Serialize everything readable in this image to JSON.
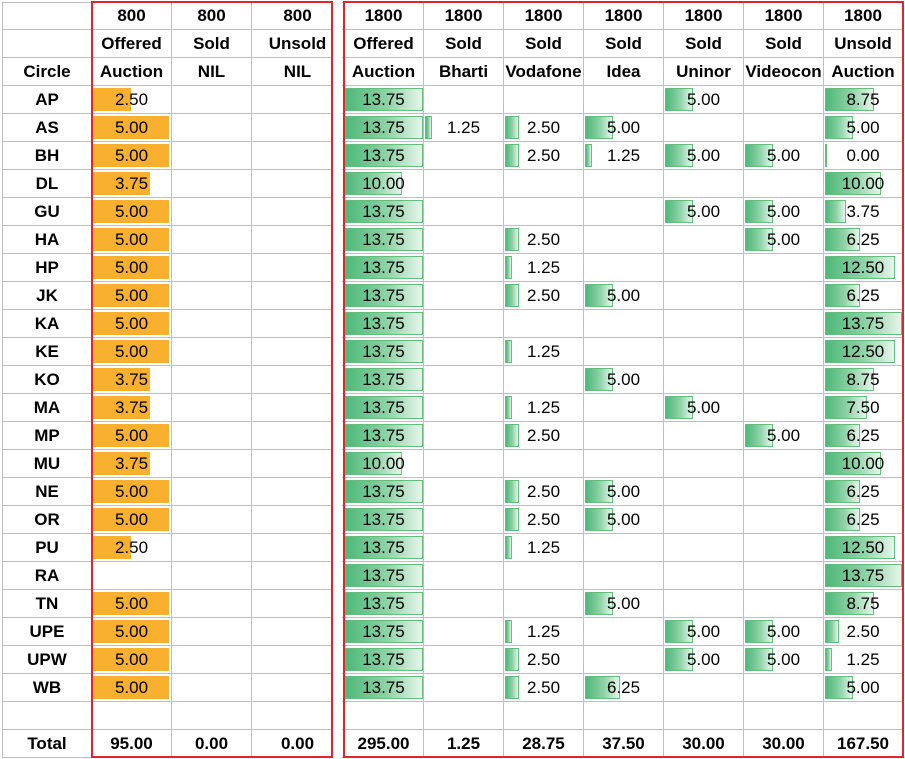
{
  "header": {
    "row1": [
      "",
      "800",
      "800",
      "800",
      "1800",
      "1800",
      "1800",
      "1800",
      "1800",
      "1800",
      "1800"
    ],
    "row2": [
      "",
      "Offered",
      "Sold",
      "Unsold",
      "Offered",
      "Sold",
      "Sold",
      "Sold",
      "Sold",
      "Sold",
      "Unsold"
    ],
    "row3": [
      "Circle",
      "Auction",
      "NIL",
      "NIL",
      "Auction",
      "Bharti",
      "Vodafone",
      "Idea",
      "Uninor",
      "Videocon",
      "Auction"
    ]
  },
  "rows": [
    [
      "AP",
      "2.50",
      "",
      "",
      "13.75",
      "",
      "",
      "",
      "5.00",
      "",
      "8.75"
    ],
    [
      "AS",
      "5.00",
      "",
      "",
      "13.75",
      "1.25",
      "2.50",
      "5.00",
      "",
      "",
      "5.00"
    ],
    [
      "BH",
      "5.00",
      "",
      "",
      "13.75",
      "",
      "2.50",
      "1.25",
      "5.00",
      "5.00",
      "0.00"
    ],
    [
      "DL",
      "3.75",
      "",
      "",
      "10.00",
      "",
      "",
      "",
      "",
      "",
      "10.00"
    ],
    [
      "GU",
      "5.00",
      "",
      "",
      "13.75",
      "",
      "",
      "",
      "5.00",
      "5.00",
      "3.75"
    ],
    [
      "HA",
      "5.00",
      "",
      "",
      "13.75",
      "",
      "2.50",
      "",
      "",
      "5.00",
      "6.25"
    ],
    [
      "HP",
      "5.00",
      "",
      "",
      "13.75",
      "",
      "1.25",
      "",
      "",
      "",
      "12.50"
    ],
    [
      "JK",
      "5.00",
      "",
      "",
      "13.75",
      "",
      "2.50",
      "5.00",
      "",
      "",
      "6.25"
    ],
    [
      "KA",
      "5.00",
      "",
      "",
      "13.75",
      "",
      "",
      "",
      "",
      "",
      "13.75"
    ],
    [
      "KE",
      "5.00",
      "",
      "",
      "13.75",
      "",
      "1.25",
      "",
      "",
      "",
      "12.50"
    ],
    [
      "KO",
      "3.75",
      "",
      "",
      "13.75",
      "",
      "",
      "5.00",
      "",
      "",
      "8.75"
    ],
    [
      "MA",
      "3.75",
      "",
      "",
      "13.75",
      "",
      "1.25",
      "",
      "5.00",
      "",
      "7.50"
    ],
    [
      "MP",
      "5.00",
      "",
      "",
      "13.75",
      "",
      "2.50",
      "",
      "",
      "5.00",
      "6.25"
    ],
    [
      "MU",
      "3.75",
      "",
      "",
      "10.00",
      "",
      "",
      "",
      "",
      "",
      "10.00"
    ],
    [
      "NE",
      "5.00",
      "",
      "",
      "13.75",
      "",
      "2.50",
      "5.00",
      "",
      "",
      "6.25"
    ],
    [
      "OR",
      "5.00",
      "",
      "",
      "13.75",
      "",
      "2.50",
      "5.00",
      "",
      "",
      "6.25"
    ],
    [
      "PU",
      "2.50",
      "",
      "",
      "13.75",
      "",
      "1.25",
      "",
      "",
      "",
      "12.50"
    ],
    [
      "RA",
      "",
      "",
      "",
      "13.75",
      "",
      "",
      "",
      "",
      "",
      "13.75"
    ],
    [
      "TN",
      "5.00",
      "",
      "",
      "13.75",
      "",
      "",
      "5.00",
      "",
      "",
      "8.75"
    ],
    [
      "UPE",
      "5.00",
      "",
      "",
      "13.75",
      "",
      "1.25",
      "",
      "5.00",
      "5.00",
      "2.50"
    ],
    [
      "UPW",
      "5.00",
      "",
      "",
      "13.75",
      "",
      "2.50",
      "",
      "5.00",
      "5.00",
      "1.25"
    ],
    [
      "WB",
      "5.00",
      "",
      "",
      "13.75",
      "",
      "2.50",
      "6.25",
      "",
      "",
      "5.00"
    ]
  ],
  "blank_row": [
    "",
    "",
    "",
    "",
    "",
    "",
    "",
    "",
    "",
    "",
    ""
  ],
  "totals": [
    "Total",
    "95.00",
    "0.00",
    "0.00",
    "295.00",
    "1.25",
    "28.75",
    "37.50",
    "30.00",
    "30.00",
    "167.50"
  ],
  "colors": {
    "orange_bar": "#f8b02e",
    "green_bar": "#63be7b",
    "red_border": "#e0262a",
    "grid_line": "#bfbfbf"
  }
}
